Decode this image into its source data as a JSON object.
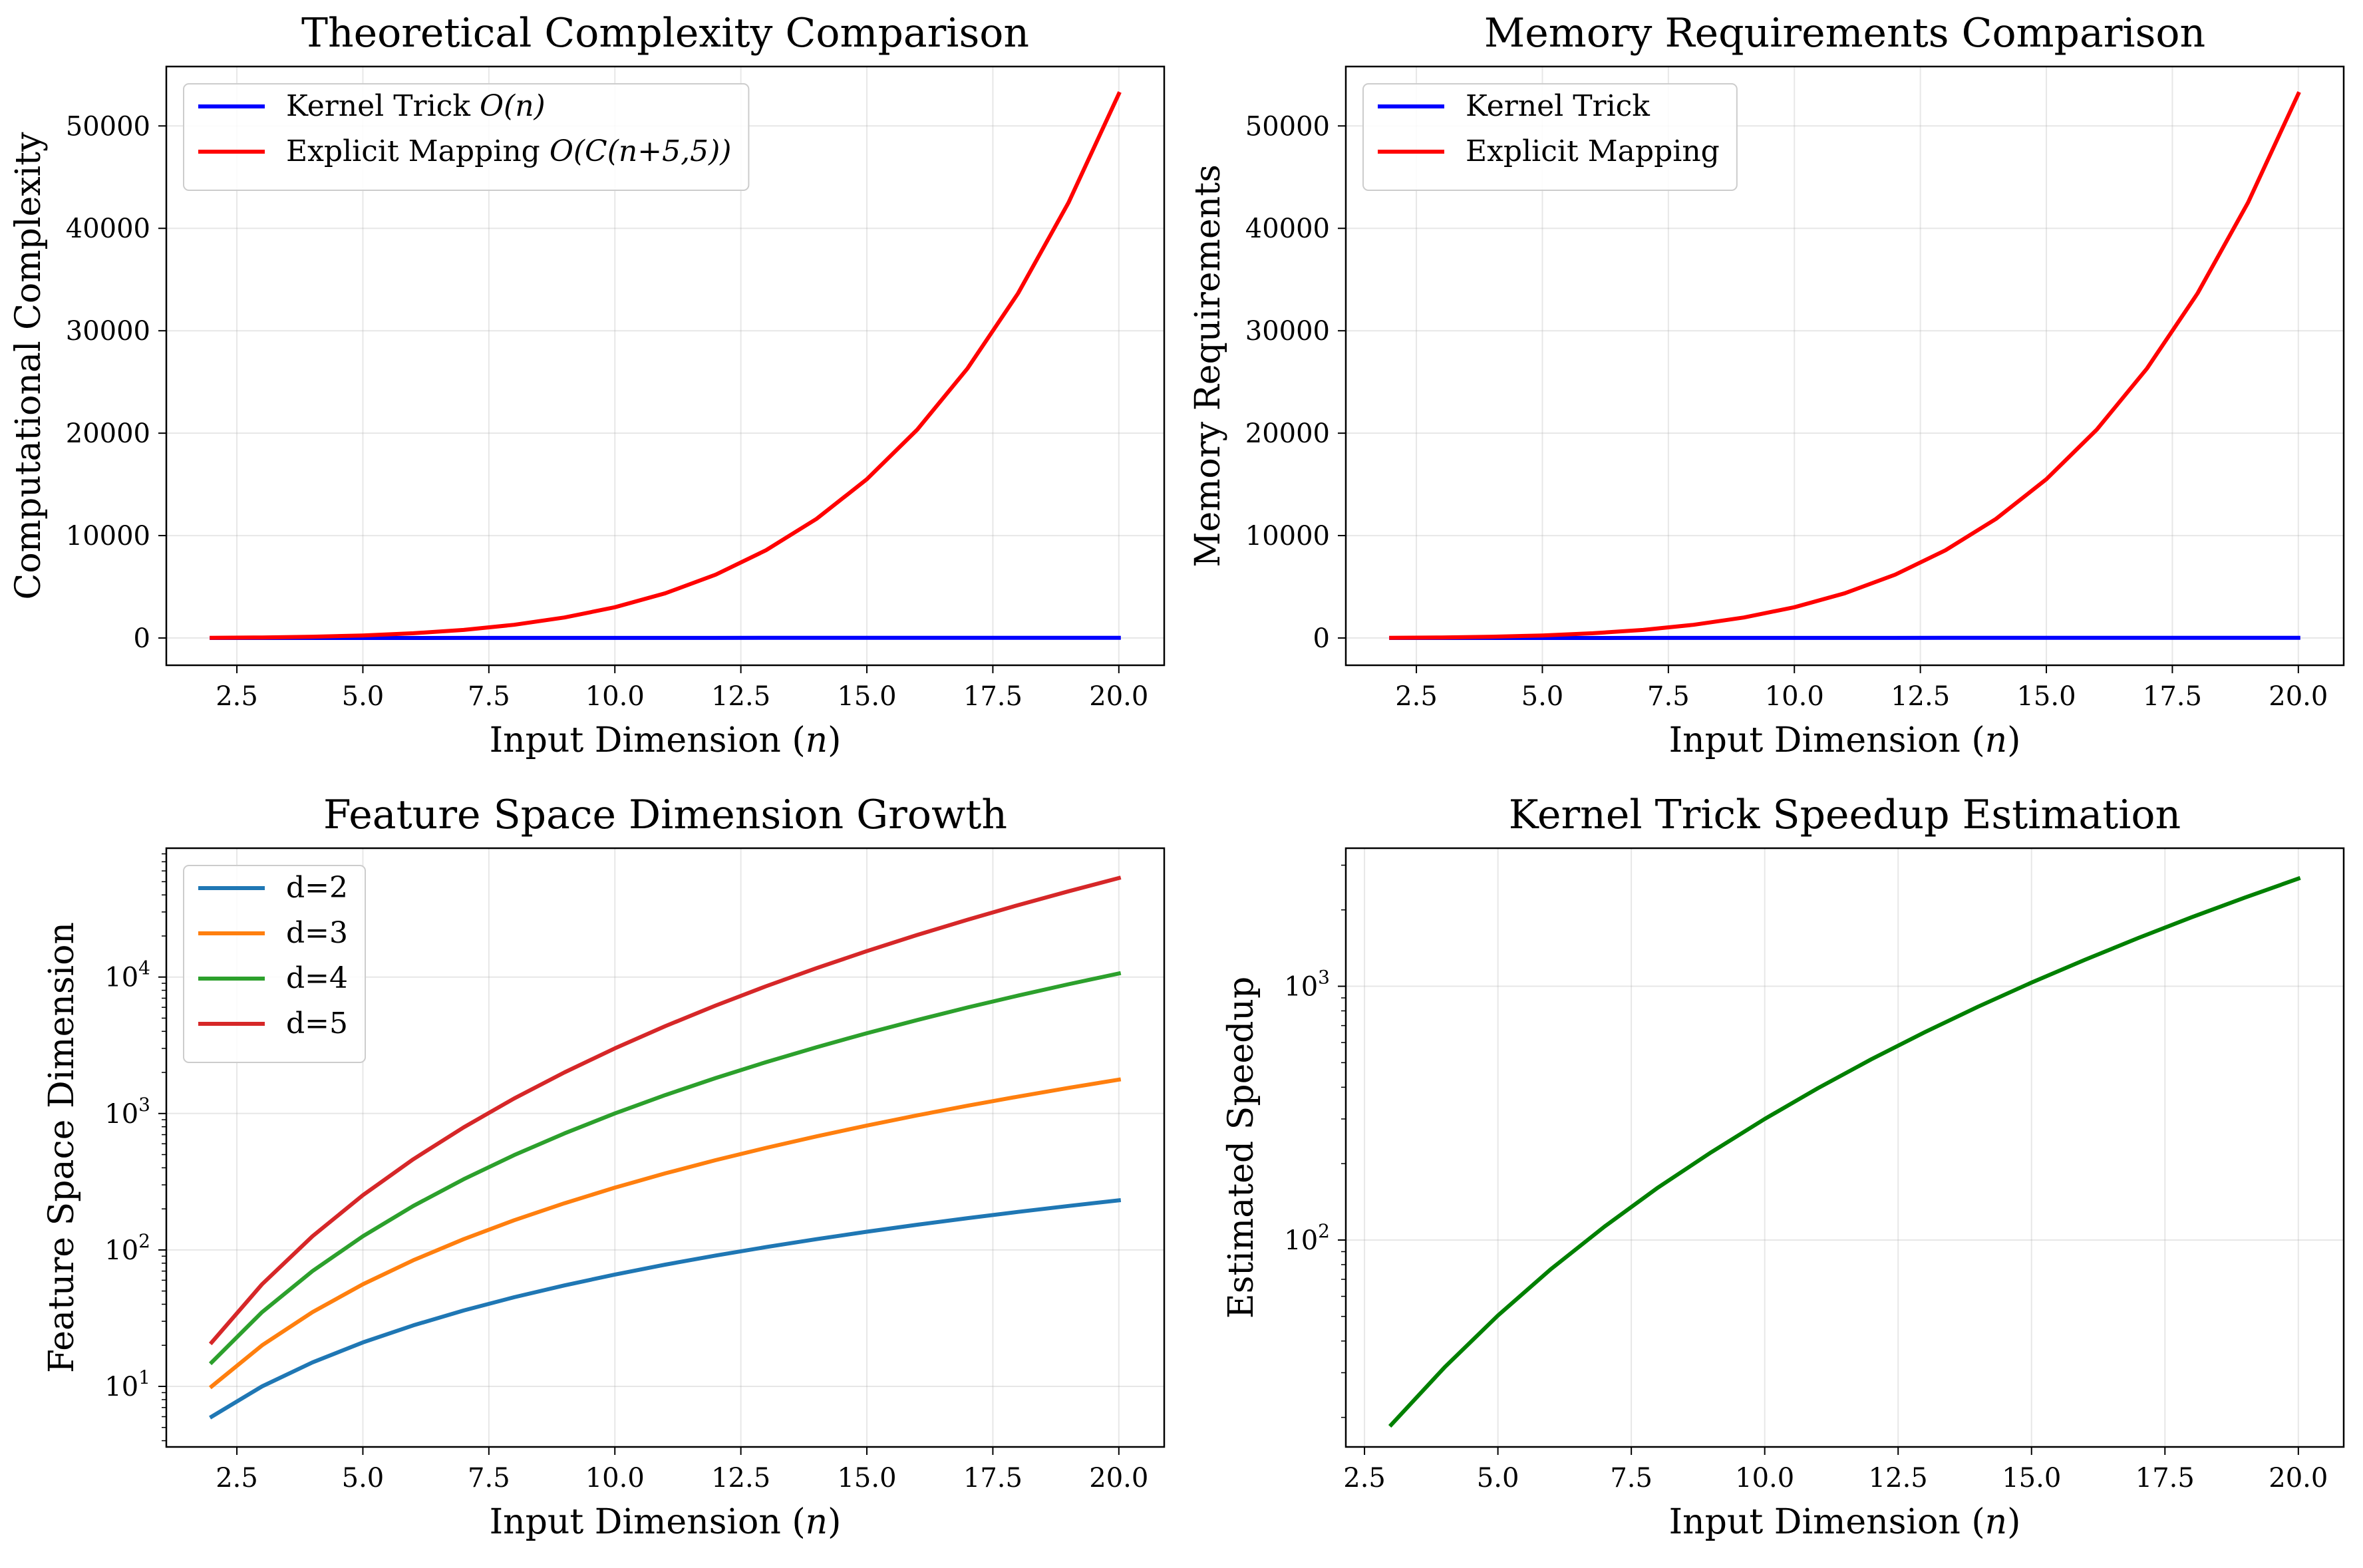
{
  "chart_data": [
    {
      "type": "line",
      "title": "Theoretical Complexity Comparison",
      "xlabel": "Input Dimension",
      "xlabel_var": "n",
      "ylabel": "Computational Complexity",
      "x": [
        2,
        3,
        4,
        5,
        6,
        7,
        8,
        9,
        10,
        11,
        12,
        13,
        14,
        15,
        16,
        17,
        18,
        19,
        20
      ],
      "xlim": [
        1.1,
        20.9
      ],
      "ylim": [
        -2660,
        55800
      ],
      "yscale": "linear",
      "xticks": [
        "2.5",
        "5.0",
        "7.5",
        "10.0",
        "12.5",
        "15.0",
        "17.5",
        "20.0"
      ],
      "yticks": [
        "0",
        "10000",
        "20000",
        "30000",
        "40000",
        "50000"
      ],
      "grid": true,
      "legend_position": "top-left",
      "series": [
        {
          "name": "Kernel Trick O(n)",
          "name_plain": "Kernel Trick",
          "name_math": "O(n)",
          "color": "#0000ff",
          "values": [
            2,
            3,
            4,
            5,
            6,
            7,
            8,
            9,
            10,
            11,
            12,
            13,
            14,
            15,
            16,
            17,
            18,
            19,
            20
          ]
        },
        {
          "name": "Explicit Mapping O(C(n+5,5))",
          "name_plain": "Explicit Mapping",
          "name_math": "O(C(n+5,5))",
          "color": "#ff0000",
          "values": [
            21,
            56,
            126,
            252,
            462,
            792,
            1287,
            2002,
            3003,
            4368,
            6188,
            8568,
            11628,
            15504,
            20349,
            26334,
            33649,
            42504,
            53130
          ]
        }
      ]
    },
    {
      "type": "line",
      "title": "Memory Requirements Comparison",
      "xlabel": "Input Dimension",
      "xlabel_var": "n",
      "ylabel": "Memory Requirements",
      "x": [
        2,
        3,
        4,
        5,
        6,
        7,
        8,
        9,
        10,
        11,
        12,
        13,
        14,
        15,
        16,
        17,
        18,
        19,
        20
      ],
      "xlim": [
        1.1,
        20.9
      ],
      "ylim": [
        -2660,
        55800
      ],
      "yscale": "linear",
      "xticks": [
        "2.5",
        "5.0",
        "7.5",
        "10.0",
        "12.5",
        "15.0",
        "17.5",
        "20.0"
      ],
      "yticks": [
        "0",
        "10000",
        "20000",
        "30000",
        "40000",
        "50000"
      ],
      "grid": true,
      "legend_position": "top-left",
      "series": [
        {
          "name": "Kernel Trick",
          "color": "#0000ff",
          "values": [
            2,
            3,
            4,
            5,
            6,
            7,
            8,
            9,
            10,
            11,
            12,
            13,
            14,
            15,
            16,
            17,
            18,
            19,
            20
          ]
        },
        {
          "name": "Explicit Mapping",
          "color": "#ff0000",
          "values": [
            21,
            56,
            126,
            252,
            462,
            792,
            1287,
            2002,
            3003,
            4368,
            6188,
            8568,
            11628,
            15504,
            20349,
            26334,
            33649,
            42504,
            53130
          ]
        }
      ]
    },
    {
      "type": "line",
      "title": "Feature Space Dimension Growth",
      "xlabel": "Input Dimension",
      "xlabel_var": "n",
      "ylabel": "Feature Space Dimension",
      "x": [
        2,
        3,
        4,
        5,
        6,
        7,
        8,
        9,
        10,
        11,
        12,
        13,
        14,
        15,
        16,
        17,
        18,
        19,
        20
      ],
      "xlim": [
        1.1,
        20.9
      ],
      "ylim": [
        3.6,
        88000
      ],
      "yscale": "log",
      "xticks": [
        "2.5",
        "5.0",
        "7.5",
        "10.0",
        "12.5",
        "15.0",
        "17.5",
        "20.0"
      ],
      "yticks": [
        {
          "base": "10",
          "exp": "1"
        },
        {
          "base": "10",
          "exp": "2"
        },
        {
          "base": "10",
          "exp": "3"
        },
        {
          "base": "10",
          "exp": "4"
        }
      ],
      "grid": true,
      "legend_position": "top-left",
      "series": [
        {
          "name": "d=2",
          "color": "#1f77b4",
          "values": [
            6,
            10,
            15,
            21,
            28,
            36,
            45,
            55,
            66,
            78,
            91,
            105,
            120,
            136,
            153,
            171,
            190,
            210,
            231
          ]
        },
        {
          "name": "d=3",
          "color": "#ff7f0e",
          "values": [
            10,
            20,
            35,
            56,
            84,
            120,
            165,
            220,
            286,
            364,
            455,
            560,
            680,
            816,
            969,
            1140,
            1330,
            1540,
            1771
          ]
        },
        {
          "name": "d=4",
          "color": "#2ca02c",
          "values": [
            15,
            35,
            70,
            126,
            210,
            330,
            495,
            715,
            1001,
            1365,
            1820,
            2380,
            3060,
            3876,
            4845,
            5985,
            7315,
            8855,
            10626
          ]
        },
        {
          "name": "d=5",
          "color": "#d62728",
          "values": [
            21,
            56,
            126,
            252,
            462,
            792,
            1287,
            2002,
            3003,
            4368,
            6188,
            8568,
            11628,
            15504,
            20349,
            26334,
            33649,
            42504,
            53130
          ]
        }
      ]
    },
    {
      "type": "line",
      "title": "Kernel Trick Speedup Estimation",
      "xlabel": "Input Dimension",
      "xlabel_var": "n",
      "ylabel": "Estimated Speedup",
      "x": [
        3,
        4,
        5,
        6,
        7,
        8,
        9,
        10,
        11,
        12,
        13,
        14,
        15,
        16,
        17,
        18,
        19,
        20
      ],
      "xlim": [
        2.15,
        20.85
      ],
      "ylim": [
        15.3,
        3500
      ],
      "yscale": "log",
      "xticks": [
        "2.5",
        "5.0",
        "7.5",
        "10.0",
        "12.5",
        "15.0",
        "17.5",
        "20.0"
      ],
      "yticks": [
        {
          "base": "10",
          "exp": "2"
        },
        {
          "base": "10",
          "exp": "3"
        }
      ],
      "grid": true,
      "series": [
        {
          "color": "#008000",
          "values": [
            18.7,
            31.5,
            50.4,
            77,
            113,
            161,
            222,
            300,
            397,
            516,
            659,
            831,
            1034,
            1272,
            1549,
            1871,
            2237,
            2657
          ]
        }
      ]
    }
  ]
}
